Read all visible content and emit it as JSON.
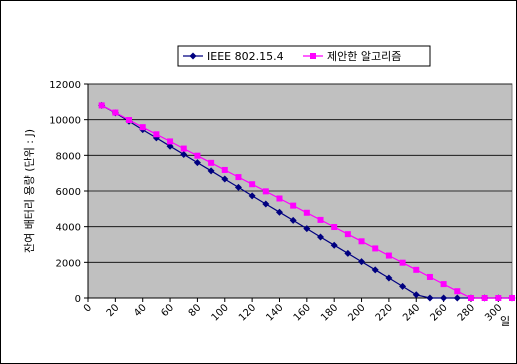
{
  "chart_data": {
    "type": "line",
    "title": "",
    "xlabel": "일",
    "ylabel": "잔여 배터리 용량 (단위 : J)",
    "xlim": [
      0,
      310
    ],
    "ylim": [
      0,
      12000
    ],
    "x_ticks": [
      0,
      20,
      40,
      60,
      80,
      100,
      120,
      140,
      160,
      180,
      200,
      220,
      240,
      260,
      280,
      300
    ],
    "y_ticks": [
      0,
      2000,
      4000,
      6000,
      8000,
      10000,
      12000
    ],
    "grid": true,
    "legend_position": "top",
    "plot_background": "#c0c0c0",
    "x": [
      10,
      20,
      30,
      40,
      50,
      60,
      70,
      80,
      90,
      100,
      110,
      120,
      130,
      140,
      150,
      160,
      170,
      180,
      190,
      200,
      210,
      220,
      230,
      240,
      250,
      260,
      270,
      280,
      290,
      300,
      310
    ],
    "series": [
      {
        "name": "IEEE 802.15.4",
        "color": "#000080",
        "marker": "diamond",
        "values": [
          10800,
          10380,
          9910,
          9440,
          8980,
          8510,
          8050,
          7590,
          7130,
          6670,
          6200,
          5730,
          5270,
          4810,
          4350,
          3890,
          3420,
          2960,
          2500,
          2040,
          1580,
          1120,
          650,
          180,
          0,
          0,
          0,
          0,
          0,
          0,
          0
        ]
      },
      {
        "name": "제안한 알고리즘",
        "color": "#ff00ff",
        "marker": "square",
        "values": [
          10800,
          10400,
          9980,
          9580,
          9180,
          8780,
          8380,
          7980,
          7580,
          7180,
          6780,
          6380,
          5980,
          5580,
          5180,
          4780,
          4380,
          3980,
          3580,
          3180,
          2780,
          2380,
          1980,
          1580,
          1180,
          780,
          380,
          0,
          0,
          0,
          0
        ]
      }
    ]
  }
}
